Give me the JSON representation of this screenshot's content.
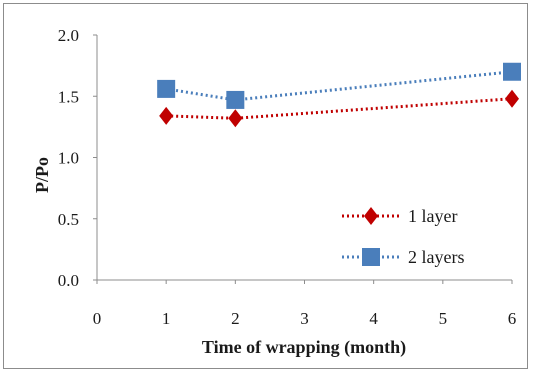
{
  "chart_data": {
    "type": "line",
    "title": "",
    "xlabel": "Time  of wrapping (month)",
    "ylabel": "P/Po",
    "xlim": [
      0,
      6
    ],
    "ylim": [
      0.0,
      2.0
    ],
    "x_ticks": [
      "0",
      "1",
      "2",
      "3",
      "4",
      "5",
      "6"
    ],
    "y_ticks": [
      "0.0",
      "0.5",
      "1.0",
      "1.5",
      "2.0"
    ],
    "grid": false,
    "legend_position": "bottom-right",
    "series": [
      {
        "name": "1 layer",
        "color": "#c00000",
        "marker": "diamond",
        "line_style": "dotted",
        "x": [
          1,
          2,
          6
        ],
        "y": [
          1.34,
          1.32,
          1.48
        ]
      },
      {
        "name": "2 layers",
        "color": "#4a7ebb",
        "marker": "square",
        "line_style": "dotted",
        "x": [
          1,
          2,
          6
        ],
        "y": [
          1.56,
          1.47,
          1.7
        ]
      }
    ]
  }
}
